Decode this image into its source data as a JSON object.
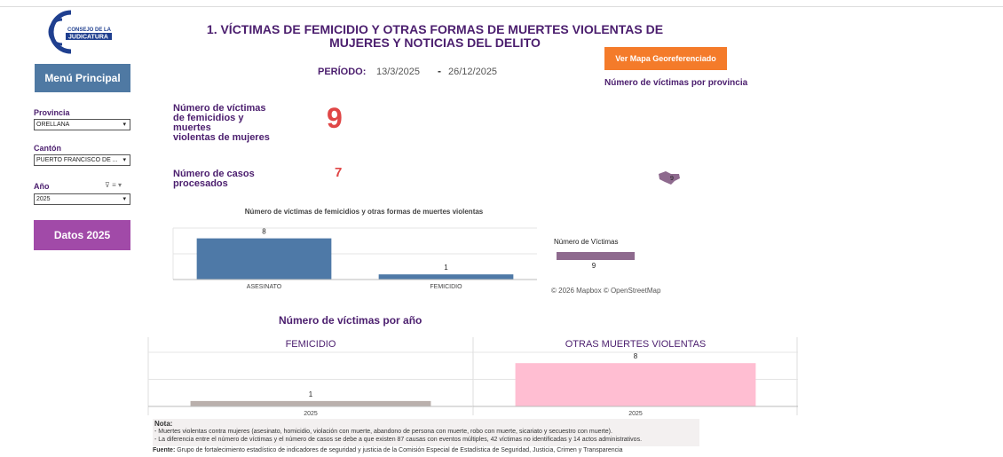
{
  "logo": {
    "line1": "CONSEJO DE LA",
    "line2": "JUDICATURA"
  },
  "title": [
    "1. VÍCTIMAS DE FEMICIDIO Y OTRAS FORMAS DE MUERTES VIOLENTAS DE",
    "MUJERES Y NOTICIAS DEL DELITO"
  ],
  "sidebar": {
    "menu_button": "Menú Principal",
    "filters": [
      {
        "label": "Provincia",
        "value": "ORELLANA"
      },
      {
        "label": "Cantón",
        "value": "PUERTO FRANCISCO DE ..."
      },
      {
        "label": "Año",
        "value": "2025"
      }
    ],
    "data_button": "Datos 2025"
  },
  "period": {
    "label": "PERÍODO:",
    "start": "13/3/2025",
    "separator": "-",
    "end": "26/12/2025"
  },
  "kpis": [
    {
      "label": [
        "Número de víctimas",
        "de femicidios y",
        "muertes",
        "violentas de mujeres"
      ],
      "value": 9
    },
    {
      "label": [
        "Número de casos",
        "procesados"
      ],
      "value": 7
    }
  ],
  "map": {
    "button": "Ver Mapa Georeferenciado",
    "title": "Número de víctimas por provincia",
    "legend_title": "Número de Víctimas",
    "legend_value": 9,
    "point_value": 9,
    "attribution": "© 2026 Mapbox © OpenStreetMap"
  },
  "type_chart": {
    "type": "bar",
    "title": "Número de víctimas de femicidios y otras formas de muertes violentas",
    "categories": [
      "ASESINATO",
      "FEMICIDIO"
    ],
    "values": [
      8,
      1
    ],
    "color": "#4e79a7",
    "ylim": [
      0,
      10
    ],
    "yticks": [
      0,
      5,
      10
    ]
  },
  "year_chart": {
    "type": "bar",
    "title": "Número de víctimas por año",
    "panels": [
      {
        "name": "FEMICIDIO",
        "color": "#bab0ac",
        "categories": [
          "2025"
        ],
        "values": [
          1
        ]
      },
      {
        "name": "OTRAS MUERTES VIOLENTAS",
        "color": "#ffbed2",
        "categories": [
          "2025"
        ],
        "values": [
          8
        ]
      }
    ],
    "ylim": [
      0,
      10
    ],
    "yticks": [
      0,
      5,
      10
    ]
  },
  "note": {
    "label": "Nota:",
    "lines": [
      "- Muertes violentas contra mujeres (asesinato, homicidio, violación con muerte, abandono de persona con muerte, robo con muerte, sicariato y secuestro con muerte).",
      "- La diferencia entre el número de víctimas y el número de casos se debe a que existen 87 causas con eventos múltiples, 42 víctimas no identificadas y 14  actos administrativos."
    ]
  },
  "source": {
    "label": "Fuente:",
    "text": "Grupo de fortalecimiento estadístico de indicadores de seguridad y justicia de la Comisión Especial de Estadística de Seguridad, Justicia, Crimen y Transparencia"
  }
}
